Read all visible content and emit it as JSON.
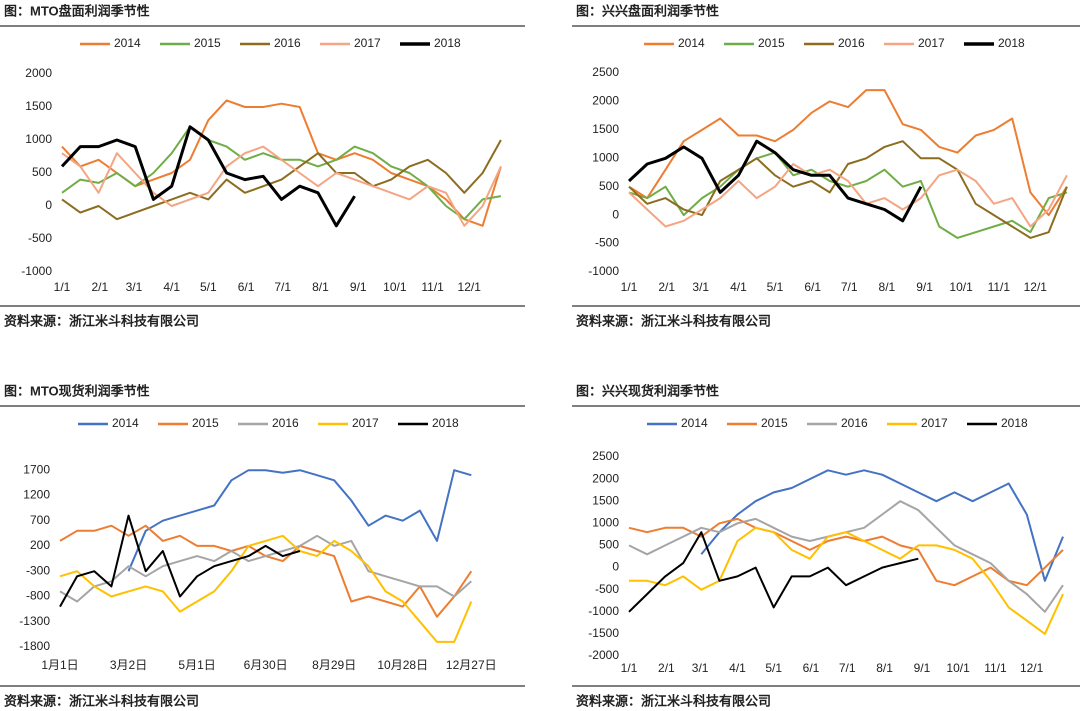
{
  "chart_data": [
    {
      "type": "line",
      "title": "图：MTO盘面利润季节性",
      "source": "资料来源：浙江米斗科技有限公司",
      "x": [
        0,
        15,
        30,
        45,
        60,
        75,
        90,
        105,
        120,
        135,
        150,
        165,
        180,
        195,
        210,
        225,
        240,
        255,
        270,
        285,
        300,
        315,
        330,
        345,
        360
      ],
      "xlim": [
        0,
        365
      ],
      "xticks": [
        {
          "value": 0,
          "label": "1/1"
        },
        {
          "value": 31,
          "label": "2/1"
        },
        {
          "value": 59,
          "label": "3/1"
        },
        {
          "value": 90,
          "label": "4/1"
        },
        {
          "value": 120,
          "label": "5/1"
        },
        {
          "value": 151,
          "label": "6/1"
        },
        {
          "value": 181,
          "label": "7/1"
        },
        {
          "value": 212,
          "label": "8/1"
        },
        {
          "value": 243,
          "label": "9/1"
        },
        {
          "value": 273,
          "label": "10/1"
        },
        {
          "value": 304,
          "label": "11/1"
        },
        {
          "value": 334,
          "label": "12/1"
        }
      ],
      "ylim": [
        -1000,
        2000
      ],
      "yticks": [
        -1000,
        -500,
        0,
        500,
        1000,
        1500,
        2000
      ],
      "series": [
        {
          "name": "2014",
          "color": "#ed7d31",
          "width": 2,
          "values": [
            900,
            600,
            700,
            500,
            300,
            400,
            500,
            700,
            1300,
            1600,
            1500,
            1500,
            1550,
            1500,
            800,
            700,
            800,
            700,
            500,
            400,
            300,
            100,
            -200,
            -300,
            600
          ]
        },
        {
          "name": "2015",
          "color": "#70ad47",
          "width": 2,
          "values": [
            200,
            400,
            350,
            500,
            300,
            500,
            800,
            1200,
            1000,
            900,
            700,
            800,
            700,
            700,
            600,
            700,
            900,
            800,
            600,
            500,
            300,
            0,
            -200,
            100,
            150
          ]
        },
        {
          "name": "2016",
          "color": "#8c6d1f",
          "width": 2,
          "values": [
            100,
            -100,
            0,
            -200,
            -100,
            0,
            100,
            200,
            100,
            400,
            200,
            300,
            400,
            600,
            800,
            500,
            500,
            300,
            400,
            600,
            700,
            500,
            200,
            500,
            1000
          ]
        },
        {
          "name": "2017",
          "color": "#f4a582",
          "width": 2,
          "values": [
            800,
            600,
            200,
            800,
            500,
            200,
            0,
            100,
            200,
            600,
            800,
            900,
            700,
            500,
            300,
            500,
            400,
            300,
            200,
            100,
            300,
            200,
            -300,
            0,
            600
          ]
        },
        {
          "name": "2018",
          "color": "#000000",
          "width": 3,
          "values": [
            600,
            900,
            900,
            1000,
            900,
            100,
            300,
            1200,
            1000,
            500,
            400,
            450,
            100,
            300,
            200,
            -300,
            150,
            null,
            null,
            null,
            null,
            null,
            null,
            null,
            null
          ]
        }
      ]
    },
    {
      "type": "line",
      "title": "图：兴兴盘面利润季节性",
      "source": "资料来源：浙江米斗科技有限公司",
      "x": [
        0,
        15,
        30,
        45,
        60,
        75,
        90,
        105,
        120,
        135,
        150,
        165,
        180,
        195,
        210,
        225,
        240,
        255,
        270,
        285,
        300,
        315,
        330,
        345,
        360
      ],
      "xlim": [
        0,
        365
      ],
      "xticks": [
        {
          "value": 0,
          "label": "1/1"
        },
        {
          "value": 31,
          "label": "2/1"
        },
        {
          "value": 59,
          "label": "3/1"
        },
        {
          "value": 90,
          "label": "4/1"
        },
        {
          "value": 120,
          "label": "5/1"
        },
        {
          "value": 151,
          "label": "6/1"
        },
        {
          "value": 181,
          "label": "7/1"
        },
        {
          "value": 212,
          "label": "8/1"
        },
        {
          "value": 243,
          "label": "9/1"
        },
        {
          "value": 273,
          "label": "10/1"
        },
        {
          "value": 304,
          "label": "11/1"
        },
        {
          "value": 334,
          "label": "12/1"
        }
      ],
      "ylim": [
        -1000,
        2500
      ],
      "yticks": [
        -1000,
        -500,
        0,
        500,
        1000,
        1500,
        2000,
        2500
      ],
      "series": [
        {
          "name": "2014",
          "color": "#ed7d31",
          "width": 2,
          "values": [
            500,
            300,
            800,
            1300,
            1500,
            1700,
            1400,
            1400,
            1300,
            1500,
            1800,
            2000,
            1900,
            2200,
            2200,
            1600,
            1500,
            1200,
            1100,
            1400,
            1500,
            1700,
            400,
            0,
            500
          ]
        },
        {
          "name": "2015",
          "color": "#70ad47",
          "width": 2,
          "values": [
            400,
            300,
            500,
            0,
            300,
            500,
            800,
            1000,
            1100,
            700,
            800,
            600,
            500,
            600,
            800,
            500,
            600,
            -200,
            -400,
            -300,
            -200,
            -100,
            -300,
            300,
            400
          ]
        },
        {
          "name": "2016",
          "color": "#8c6d1f",
          "width": 2,
          "values": [
            500,
            200,
            300,
            100,
            0,
            600,
            800,
            1000,
            700,
            500,
            600,
            400,
            900,
            1000,
            1200,
            1300,
            1000,
            1000,
            800,
            200,
            0,
            -200,
            -400,
            -300,
            500
          ]
        },
        {
          "name": "2017",
          "color": "#f4a582",
          "width": 2,
          "values": [
            400,
            100,
            -200,
            -100,
            100,
            300,
            600,
            300,
            500,
            900,
            700,
            800,
            600,
            200,
            300,
            100,
            300,
            700,
            800,
            600,
            200,
            300,
            -200,
            100,
            700
          ]
        },
        {
          "name": "2018",
          "color": "#000000",
          "width": 3,
          "values": [
            600,
            900,
            1000,
            1200,
            1000,
            400,
            700,
            1300,
            1100,
            800,
            700,
            700,
            300,
            200,
            100,
            -100,
            500,
            null,
            null,
            null,
            null,
            null,
            null,
            null,
            null
          ]
        }
      ]
    },
    {
      "type": "line",
      "title": "图：MTO现货利润季节性",
      "source": "资料来源：浙江米斗科技有限公司",
      "x": [
        0,
        15,
        30,
        45,
        60,
        75,
        90,
        105,
        120,
        135,
        150,
        165,
        180,
        195,
        210,
        225,
        240,
        255,
        270,
        285,
        300,
        315,
        330,
        345,
        360
      ],
      "xlim": [
        0,
        365
      ],
      "xticks": [
        {
          "value": 0,
          "label": "1月1日"
        },
        {
          "value": 60,
          "label": "3月2日"
        },
        {
          "value": 120,
          "label": "5月1日"
        },
        {
          "value": 180,
          "label": "6月30日"
        },
        {
          "value": 240,
          "label": "8月29日"
        },
        {
          "value": 300,
          "label": "10月28日"
        },
        {
          "value": 360,
          "label": "12月27日"
        }
      ],
      "ylim": [
        -1800,
        2000
      ],
      "yticks": [
        -1800,
        -1300,
        -800,
        -300,
        200,
        700,
        1200,
        1700
      ],
      "series": [
        {
          "name": "2014",
          "color": "#4472c4",
          "width": 2,
          "values": [
            null,
            null,
            null,
            null,
            -300,
            500,
            700,
            800,
            900,
            1000,
            1500,
            1700,
            1700,
            1650,
            1700,
            1600,
            1500,
            1100,
            600,
            800,
            700,
            900,
            300,
            1700,
            1600
          ]
        },
        {
          "name": "2015",
          "color": "#ed7d31",
          "width": 2,
          "values": [
            300,
            500,
            500,
            600,
            400,
            600,
            300,
            400,
            200,
            200,
            100,
            200,
            0,
            -100,
            200,
            100,
            0,
            -900,
            -800,
            -900,
            -1000,
            -600,
            -1200,
            -800,
            -300
          ]
        },
        {
          "name": "2016",
          "color": "#a5a5a5",
          "width": 2,
          "values": [
            -700,
            -900,
            -600,
            -500,
            -200,
            -400,
            -200,
            -100,
            0,
            -100,
            100,
            -100,
            0,
            100,
            200,
            400,
            200,
            300,
            -300,
            -400,
            -500,
            -600,
            -600,
            -800,
            -500
          ]
        },
        {
          "name": "2017",
          "color": "#ffc000",
          "width": 2,
          "values": [
            -400,
            -300,
            -600,
            -800,
            -700,
            -600,
            -700,
            -1100,
            -900,
            -700,
            -300,
            200,
            300,
            400,
            100,
            0,
            300,
            100,
            -200,
            -700,
            -900,
            -1300,
            -1700,
            -1700,
            -900
          ]
        },
        {
          "name": "2018",
          "color": "#000000",
          "width": 2,
          "values": [
            -1000,
            -400,
            -300,
            -600,
            800,
            -300,
            100,
            -800,
            -400,
            -200,
            -100,
            0,
            200,
            0,
            100,
            null,
            null,
            null,
            null,
            null,
            null,
            null,
            null,
            null,
            null
          ]
        }
      ]
    },
    {
      "type": "line",
      "title": "图：兴兴现货利润季节性",
      "source": "资料来源：浙江米斗科技有限公司",
      "x": [
        0,
        15,
        30,
        45,
        60,
        75,
        90,
        105,
        120,
        135,
        150,
        165,
        180,
        195,
        210,
        225,
        240,
        255,
        270,
        285,
        300,
        315,
        330,
        345,
        360
      ],
      "xlim": [
        0,
        365
      ],
      "xticks": [
        {
          "value": 0,
          "label": "1/1"
        },
        {
          "value": 31,
          "label": "2/1"
        },
        {
          "value": 59,
          "label": "3/1"
        },
        {
          "value": 90,
          "label": "4/1"
        },
        {
          "value": 120,
          "label": "5/1"
        },
        {
          "value": 151,
          "label": "6/1"
        },
        {
          "value": 181,
          "label": "7/1"
        },
        {
          "value": 212,
          "label": "8/1"
        },
        {
          "value": 243,
          "label": "9/1"
        },
        {
          "value": 273,
          "label": "10/1"
        },
        {
          "value": 304,
          "label": "11/1"
        },
        {
          "value": 334,
          "label": "12/1"
        }
      ],
      "ylim": [
        -2000,
        2500
      ],
      "yticks": [
        -2000,
        -1500,
        -1000,
        -500,
        0,
        500,
        1000,
        1500,
        2000,
        2500
      ],
      "series": [
        {
          "name": "2014",
          "color": "#4472c4",
          "width": 2,
          "values": [
            null,
            null,
            null,
            null,
            300,
            800,
            1200,
            1500,
            1700,
            1800,
            2000,
            2200,
            2100,
            2200,
            2100,
            1900,
            1700,
            1500,
            1700,
            1500,
            1700,
            1900,
            1200,
            -300,
            700
          ]
        },
        {
          "name": "2015",
          "color": "#ed7d31",
          "width": 2,
          "values": [
            900,
            800,
            900,
            900,
            700,
            1000,
            1100,
            900,
            800,
            600,
            400,
            600,
            700,
            600,
            700,
            500,
            400,
            -300,
            -400,
            -200,
            0,
            -300,
            -400,
            0,
            400
          ]
        },
        {
          "name": "2016",
          "color": "#a5a5a5",
          "width": 2,
          "values": [
            500,
            300,
            500,
            700,
            900,
            800,
            1000,
            1100,
            900,
            700,
            600,
            700,
            800,
            900,
            1200,
            1500,
            1300,
            900,
            500,
            300,
            100,
            -300,
            -600,
            -1000,
            -400
          ]
        },
        {
          "name": "2017",
          "color": "#ffc000",
          "width": 2,
          "values": [
            -300,
            -300,
            -400,
            -200,
            -500,
            -300,
            600,
            900,
            800,
            400,
            200,
            700,
            800,
            600,
            400,
            200,
            500,
            500,
            400,
            200,
            -300,
            -900,
            -1200,
            -1500,
            -600
          ]
        },
        {
          "name": "2018",
          "color": "#000000",
          "width": 2,
          "values": [
            -1000,
            -600,
            -200,
            100,
            800,
            -300,
            -200,
            0,
            -900,
            -200,
            -200,
            0,
            -400,
            -200,
            0,
            100,
            200,
            null,
            null,
            null,
            null,
            null,
            null,
            null,
            null
          ]
        }
      ]
    }
  ]
}
